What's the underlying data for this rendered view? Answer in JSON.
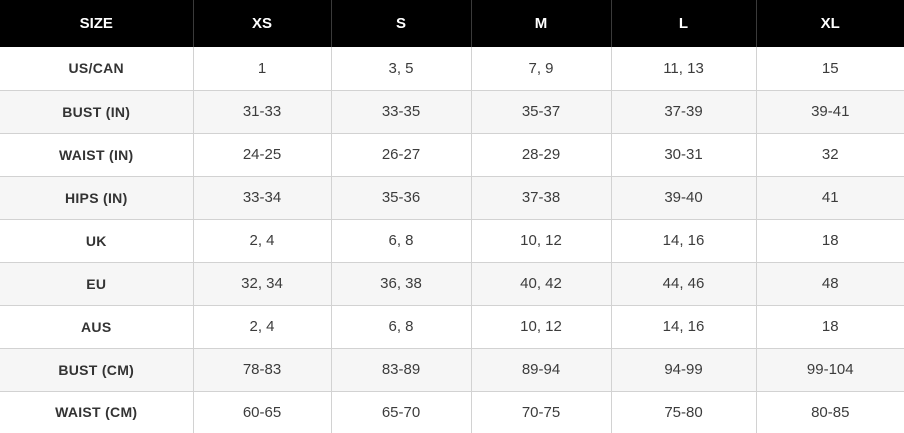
{
  "columns": [
    "SIZE",
    "XS",
    "S",
    "M",
    "L",
    "XL"
  ],
  "rows": [
    {
      "label": "US/CAN",
      "values": [
        "1",
        "3, 5",
        "7, 9",
        "11, 13",
        "15"
      ]
    },
    {
      "label": "BUST (IN)",
      "values": [
        "31-33",
        "33-35",
        "35-37",
        "37-39",
        "39-41"
      ]
    },
    {
      "label": "WAIST (IN)",
      "values": [
        "24-25",
        "26-27",
        "28-29",
        "30-31",
        "32"
      ]
    },
    {
      "label": "HIPS (IN)",
      "values": [
        "33-34",
        "35-36",
        "37-38",
        "39-40",
        "41"
      ]
    },
    {
      "label": "UK",
      "values": [
        "2, 4",
        "6, 8",
        "10, 12",
        "14, 16",
        "18"
      ]
    },
    {
      "label": "EU",
      "values": [
        "32, 34",
        "36, 38",
        "40, 42",
        "44, 46",
        "48"
      ]
    },
    {
      "label": "AUS",
      "values": [
        "2, 4",
        "6, 8",
        "10, 12",
        "14, 16",
        "18"
      ]
    },
    {
      "label": "BUST (CM)",
      "values": [
        "78-83",
        "83-89",
        "89-94",
        "94-99",
        "99-104"
      ]
    },
    {
      "label": "WAIST (CM)",
      "values": [
        "60-65",
        "65-70",
        "70-75",
        "75-80",
        "80-85"
      ]
    }
  ],
  "colors": {
    "header_bg": "#000000",
    "header_text": "#ffffff",
    "row_alt_bg": "#f6f6f6",
    "grid_line": "#d2d2d2",
    "body_text": "#3c3c3c"
  }
}
